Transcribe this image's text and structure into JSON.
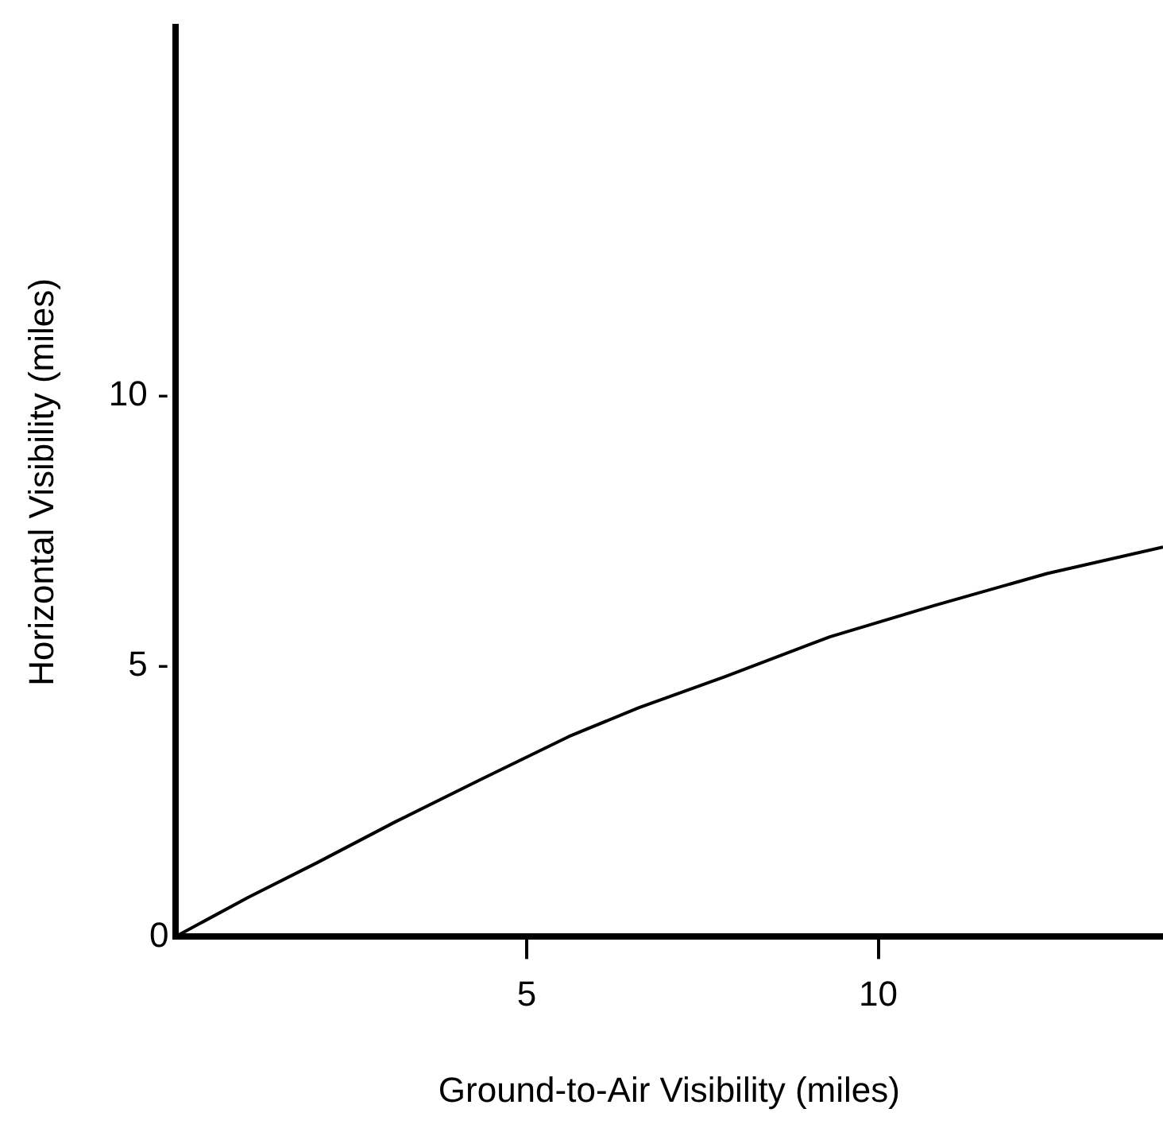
{
  "chart_data": {
    "type": "line",
    "xlabel": "Ground-to-Air Visibility (miles)",
    "ylabel": "Horizontal Visibility (miles)",
    "x": [
      0,
      1.04,
      2.02,
      3.14,
      4.37,
      5.6,
      6.59,
      7.83,
      9.31,
      10.8,
      12.4,
      14.05
    ],
    "series": [
      {
        "color": "#000000",
        "values": [
          0,
          0.73,
          1.37,
          2.13,
          2.92,
          3.7,
          4.23,
          4.81,
          5.54,
          6.12,
          6.71,
          7.2
        ]
      }
    ],
    "xlim": [
      0,
      14.05
    ],
    "xticks": [
      5,
      10
    ],
    "ylim": [
      0,
      16.8
    ],
    "yticks": [
      0,
      {
        "value": 5,
        "label": "5 -"
      },
      {
        "value": 10,
        "label": "10 -"
      }
    ],
    "grid": false,
    "legend": false,
    "marker": "none",
    "line_style": "solid"
  }
}
